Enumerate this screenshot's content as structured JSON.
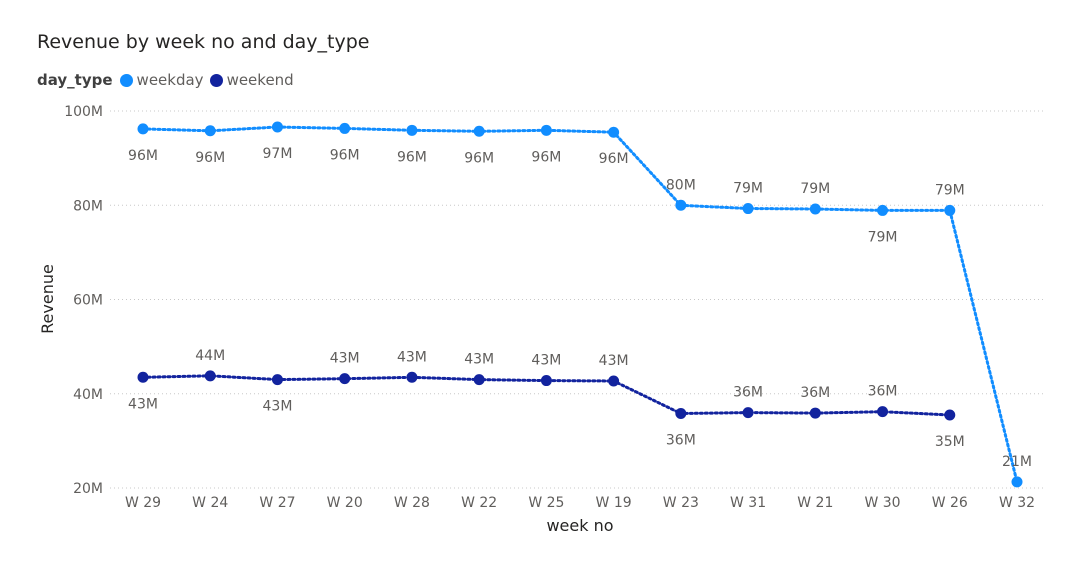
{
  "chart_data": {
    "type": "line",
    "title": "Revenue by week no and day_type",
    "legend_title": "day_type",
    "legend_placement": "top-left",
    "xlabel": "week no",
    "ylabel": "Revenue",
    "ylim": [
      20,
      100
    ],
    "y_unit": "M",
    "yticks": [
      {
        "value": 20,
        "label": "20M"
      },
      {
        "value": 40,
        "label": "40M"
      },
      {
        "value": 60,
        "label": "60M"
      },
      {
        "value": 80,
        "label": "80M"
      },
      {
        "value": 100,
        "label": "100M"
      }
    ],
    "grid": true,
    "categories": [
      "W 29",
      "W 24",
      "W 27",
      "W 20",
      "W 28",
      "W 22",
      "W 25",
      "W 19",
      "W 23",
      "W 31",
      "W 21",
      "W 30",
      "W 26",
      "W 32"
    ],
    "series": [
      {
        "name": "weekday",
        "color": "#118DFF",
        "values": [
          96.2,
          95.8,
          96.6,
          96.3,
          95.9,
          95.7,
          95.9,
          95.5,
          80.0,
          79.3,
          79.2,
          78.9,
          78.9,
          21.3
        ],
        "labels": [
          "96M",
          "96M",
          "97M",
          "96M",
          "96M",
          "96M",
          "96M",
          "96M",
          "80M",
          "79M",
          "79M",
          "79M",
          "79M",
          "21M"
        ],
        "label_pos": [
          "below",
          "below",
          "below",
          "below",
          "below",
          "below",
          "below",
          "below",
          "above",
          "above",
          "above",
          "below",
          "above",
          "above"
        ]
      },
      {
        "name": "weekend",
        "color": "#12239E",
        "values": [
          43.5,
          43.8,
          43.0,
          43.2,
          43.5,
          43.0,
          42.8,
          42.7,
          35.8,
          36.0,
          35.9,
          36.2,
          35.5,
          null
        ],
        "labels": [
          "43M",
          "44M",
          "43M",
          "43M",
          "43M",
          "43M",
          "43M",
          "43M",
          "36M",
          "36M",
          "36M",
          "36M",
          "35M",
          null
        ],
        "label_pos": [
          "below",
          "above",
          "below",
          "above",
          "above",
          "above",
          "above",
          "above",
          "below",
          "above",
          "above",
          "above",
          "below",
          null
        ]
      }
    ]
  }
}
